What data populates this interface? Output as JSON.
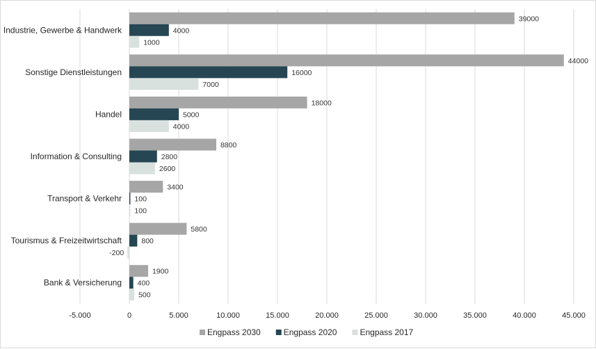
{
  "chart_data": {
    "type": "bar",
    "orientation": "horizontal",
    "title": "",
    "xlabel": "",
    "ylabel": "",
    "categories": [
      "Industrie, Gewerbe & Handwerk",
      "Sonstige Dienstleistungen",
      "Handel",
      "Information & Consulting",
      "Transport & Verkehr",
      "Tourismus & Freizeitwirtschaft",
      "Bank & Versicherung"
    ],
    "series": [
      {
        "name": "Engpass 2030",
        "color": "#a6a6a6",
        "values": [
          39000,
          44000,
          18000,
          8800,
          3400,
          5800,
          1900
        ]
      },
      {
        "name": "Engpass 2020",
        "color": "#264653",
        "values": [
          4000,
          16000,
          5000,
          2800,
          100,
          800,
          400
        ]
      },
      {
        "name": "Engpass 2017",
        "color": "#d9e1df",
        "values": [
          1000,
          7000,
          4000,
          2600,
          100,
          -200,
          500
        ]
      }
    ],
    "xlim": [
      -5000,
      45000
    ],
    "xticks": [
      -5000,
      0,
      5000,
      10000,
      15000,
      20000,
      25000,
      30000,
      35000,
      40000,
      45000
    ],
    "xtick_labels": [
      "-5.000",
      "0",
      "5.000",
      "10.000",
      "15.000",
      "20.000",
      "25.000",
      "30.000",
      "35.000",
      "40.000",
      "45.000"
    ],
    "grid": true,
    "legend_position": "bottom"
  }
}
